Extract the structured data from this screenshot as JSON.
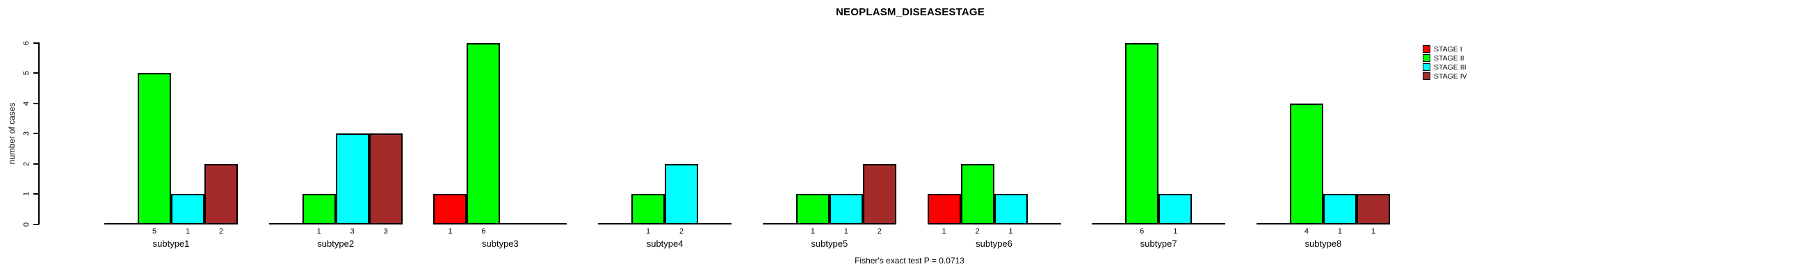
{
  "chart_data": {
    "type": "bar",
    "title": "NEOPLASM_DISEASESTAGE",
    "ylabel": "number of cases",
    "xlabel": "",
    "ylim": [
      0,
      6
    ],
    "yticks": [
      0,
      1,
      2,
      3,
      4,
      5,
      6
    ],
    "grid": false,
    "legend_position": "top-right",
    "categories": [
      "subtype1",
      "subtype2",
      "subtype3",
      "subtype4",
      "subtype5",
      "subtype6",
      "subtype7",
      "subtype8"
    ],
    "series": [
      {
        "name": "STAGE I",
        "color": "#FF0000",
        "values": [
          0,
          0,
          1,
          0,
          0,
          1,
          0,
          0
        ]
      },
      {
        "name": "STAGE II",
        "color": "#00FF00",
        "values": [
          5,
          1,
          6,
          1,
          1,
          2,
          6,
          4
        ]
      },
      {
        "name": "STAGE III",
        "color": "#00FFFF",
        "values": [
          1,
          3,
          0,
          2,
          1,
          1,
          1,
          1
        ]
      },
      {
        "name": "STAGE IV",
        "color": "#A52A2A",
        "values": [
          2,
          3,
          0,
          0,
          2,
          0,
          0,
          1
        ]
      }
    ],
    "bar_value_labels_note": "each nonzero bar is labeled with its value below the baseline",
    "caption": "Fisher's exact test P = 0.0713"
  },
  "colors": {
    "axis": "#000000",
    "background": "#FFFFFF",
    "stage_i": "#FF0000",
    "stage_ii": "#00FF00",
    "stage_iii": "#00FFFF",
    "stage_iv": "#A52A2A"
  }
}
